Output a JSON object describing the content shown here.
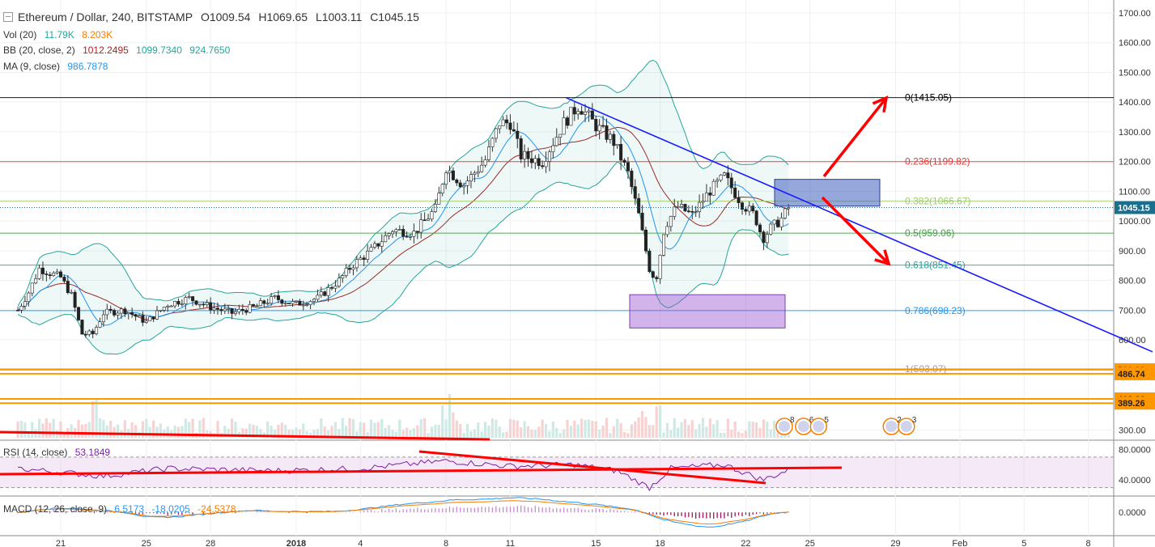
{
  "header": {
    "title": "Ethereum / Dollar, 240, BITSTAMP",
    "ohlc": {
      "o": "O1009.54",
      "h": "H1069.65",
      "l": "L1003.11",
      "c": "C1045.15"
    },
    "vol_label": "Vol (20)",
    "vol_v1": "11.79K",
    "vol_v2": "8.203K",
    "bb_label": "BB (20, close, 2)",
    "bb_v1": "1012.2495",
    "bb_v2": "1099.7340",
    "bb_v3": "924.7650",
    "ma_label": "MA (9, close)",
    "ma_v1": "986.7878",
    "rsi_label": "RSI (14, close)",
    "rsi_v1": "53.1849",
    "macd_label": "MACD (12, 26, close, 9)",
    "macd_v1": "6.5173",
    "macd_v2": "-18.0205",
    "macd_v3": "-24.5378"
  },
  "colors": {
    "up": "#26a69a",
    "down": "#ef5350",
    "bb": "#26a69a",
    "ma": "#9c2a2a",
    "fib": "#999999",
    "trend": "#1a1aff",
    "arrow": "#ff0000",
    "sr": "#ff9800"
  },
  "chart_data": [
    {
      "type": "candlestick",
      "title": "Ethereum / Dollar, 240, BITSTAMP",
      "ylim": [
        280,
        1730
      ],
      "y_ticks": [
        "1700.00",
        "1600.00",
        "1500.00",
        "1400.00",
        "1300.00",
        "1200.00",
        "1100.00",
        "1000.00",
        "900.00",
        "800.00",
        "700.00",
        "600.00",
        "300.00"
      ],
      "x_labels": [
        "21",
        "25",
        "28",
        "2018",
        "4",
        "8",
        "11",
        "15",
        "18",
        "22",
        "25",
        "29",
        "Feb",
        "5",
        "8"
      ],
      "x_label_days": [
        0,
        4,
        7,
        11,
        14,
        18,
        21,
        25,
        28,
        32,
        35,
        39,
        42,
        45,
        48
      ],
      "price_path": [
        [
          -2,
          700
        ],
        [
          -1.5,
          760
        ],
        [
          -1,
          840
        ],
        [
          0,
          810
        ],
        [
          0.5,
          750
        ],
        [
          1,
          620
        ],
        [
          1.5,
          620
        ],
        [
          2,
          690
        ],
        [
          3,
          700
        ],
        [
          4,
          660
        ],
        [
          5,
          720
        ],
        [
          6,
          740
        ],
        [
          7,
          710
        ],
        [
          8,
          690
        ],
        [
          9,
          710
        ],
        [
          10,
          740
        ],
        [
          11,
          720
        ],
        [
          12,
          740
        ],
        [
          13,
          800
        ],
        [
          13.6,
          850
        ],
        [
          14.5,
          900
        ],
        [
          15.5,
          970
        ],
        [
          16.5,
          960
        ],
        [
          17.5,
          1040
        ],
        [
          18,
          1180
        ],
        [
          18.8,
          1120
        ],
        [
          19.8,
          1200
        ],
        [
          20.5,
          1330
        ],
        [
          21,
          1330
        ],
        [
          21.5,
          1220
        ],
        [
          22.5,
          1200
        ],
        [
          23.5,
          1330
        ],
        [
          24.2,
          1390
        ],
        [
          25,
          1320
        ],
        [
          25.8,
          1270
        ],
        [
          26.5,
          1160
        ],
        [
          27,
          1020
        ],
        [
          27.5,
          840
        ],
        [
          27.8,
          800
        ],
        [
          28.2,
          980
        ],
        [
          28.8,
          1050
        ],
        [
          29.5,
          1020
        ],
        [
          30.3,
          1100
        ],
        [
          31,
          1150
        ],
        [
          31.8,
          1060
        ],
        [
          32.4,
          1020
        ],
        [
          32.8,
          940
        ],
        [
          33.2,
          980
        ],
        [
          33.6,
          1000
        ],
        [
          34,
          1045
        ]
      ],
      "price_current": "1045.15",
      "fib_levels": [
        {
          "label": "0(1415.05)",
          "value": 1415.05,
          "color": "#000000"
        },
        {
          "label": "0.236(1199.82)",
          "value": 1199.82,
          "color": "#e53935"
        },
        {
          "label": "0.382(1066.67)",
          "value": 1066.67,
          "color": "#9ccc65"
        },
        {
          "label": "0.5(959.06)",
          "value": 959.06,
          "color": "#43a047"
        },
        {
          "label": "0.618(851.45)",
          "value": 851.45,
          "color": "#26a69a"
        },
        {
          "label": "0.786(698.23)",
          "value": 698.23,
          "color": "#2196f3"
        },
        {
          "label": "1(503.07)",
          "value": 503.07,
          "color": "#9e9e9e"
        }
      ],
      "support_levels": [
        {
          "label": "500.23",
          "value": 500.23
        },
        {
          "label": "486.74",
          "value": 486.74
        },
        {
          "label": "403.36",
          "value": 403.36
        },
        {
          "label": "389.26",
          "value": 389.26
        }
      ],
      "event_flags": [
        {
          "day": 33.8,
          "count": "8"
        },
        {
          "day": 34.7,
          "count": "6"
        },
        {
          "day": 35.4,
          "count": "5"
        },
        {
          "day": 38.8,
          "count": "2"
        },
        {
          "day": 39.5,
          "count": "3"
        }
      ]
    },
    {
      "type": "line",
      "title": "RSI (14, close)",
      "ylim": [
        20,
        90
      ],
      "y_ticks": [
        "80.0000",
        "40.0000"
      ],
      "values_path": [
        [
          -2,
          55
        ],
        [
          2,
          45
        ],
        [
          5,
          55
        ],
        [
          10,
          52
        ],
        [
          14,
          55
        ],
        [
          18,
          65
        ],
        [
          21,
          58
        ],
        [
          24,
          60
        ],
        [
          26,
          52
        ],
        [
          27.5,
          30
        ],
        [
          28.5,
          55
        ],
        [
          31,
          60
        ],
        [
          32.8,
          40
        ],
        [
          34,
          53
        ]
      ],
      "current": "53.1849"
    },
    {
      "type": "line",
      "title": "MACD (12, 26, close, 9)",
      "ylim": [
        -60,
        40
      ],
      "y_ticks": [
        "0.0000"
      ],
      "current": "6.5173"
    }
  ]
}
